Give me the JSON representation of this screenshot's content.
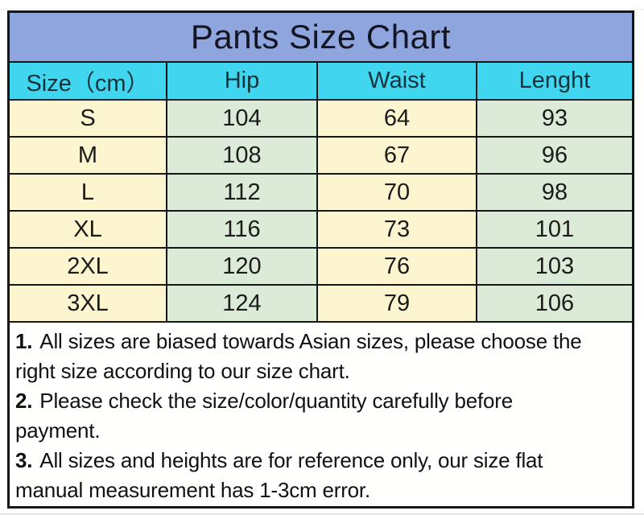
{
  "title": "Pants Size Chart",
  "table": {
    "headers": [
      "Size（cm）",
      "Hip",
      "Waist",
      "Lenght"
    ],
    "rows": [
      {
        "size": "S",
        "hip": "104",
        "waist": "64",
        "length": "93"
      },
      {
        "size": "M",
        "hip": "108",
        "waist": "67",
        "length": "96"
      },
      {
        "size": "L",
        "hip": "112",
        "waist": "70",
        "length": "98"
      },
      {
        "size": "XL",
        "hip": "116",
        "waist": "73",
        "length": "101"
      },
      {
        "size": "2XL",
        "hip": "120",
        "waist": "76",
        "length": "103"
      },
      {
        "size": "3XL",
        "hip": "124",
        "waist": "79",
        "length": "106"
      }
    ]
  },
  "notes": [
    {
      "num": "1.",
      "line1": "All sizes are biased towards Asian sizes, please choose the",
      "line2": "right size according to our size chart."
    },
    {
      "num": "2.",
      "line1": "Please check the size/color/quantity carefully before",
      "line2": "payment."
    },
    {
      "num": "3.",
      "line1": "All sizes and heights are for reference only, our size flat",
      "line2": "manual measurement has 1-3cm error."
    }
  ],
  "colors": {
    "title_bg": "#8fa5dd",
    "header_bg": "#41d6f0",
    "column_cream": "#fdf5cf",
    "column_green": "#dcead8",
    "border": "#161616",
    "page_bg": "#ffffff"
  }
}
